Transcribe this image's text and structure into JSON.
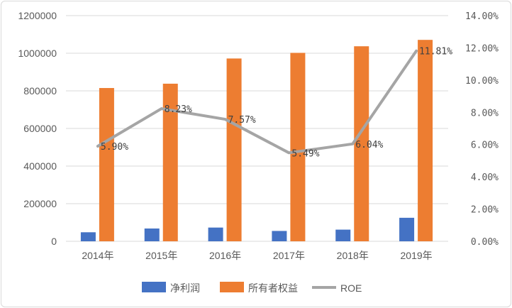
{
  "chart_data": {
    "type": "bar",
    "categories": [
      "2014年",
      "2015年",
      "2016年",
      "2017年",
      "2018年",
      "2019年"
    ],
    "series": [
      {
        "name": "净利润",
        "type": "bar",
        "axis": "left",
        "color": "#4472c4",
        "values": [
          48000,
          68000,
          73000,
          55000,
          62000,
          125000
        ]
      },
      {
        "name": "所有者权益",
        "type": "bar",
        "axis": "left",
        "color": "#ed7d31",
        "values": [
          815000,
          838000,
          972000,
          1002000,
          1037000,
          1071000
        ]
      },
      {
        "name": "ROE",
        "type": "line",
        "axis": "right",
        "color": "#a5a5a5",
        "values": [
          5.9,
          8.23,
          7.57,
          5.49,
          6.04,
          11.81
        ],
        "labels": [
          "5.90%",
          "8.23%",
          "7.57%",
          "5.49%",
          "6.04%",
          "11.81%"
        ]
      }
    ],
    "y_left": {
      "ylim": [
        0,
        1200000
      ],
      "ticks": [
        "0",
        "200000",
        "400000",
        "600000",
        "800000",
        "1000000",
        "1200000"
      ]
    },
    "y_right": {
      "ylim": [
        0,
        14
      ],
      "ticks": [
        "0.00%",
        "2.00%",
        "4.00%",
        "6.00%",
        "8.00%",
        "10.00%",
        "12.00%",
        "14.00%"
      ]
    },
    "grid": true,
    "legend_position": "bottom"
  }
}
